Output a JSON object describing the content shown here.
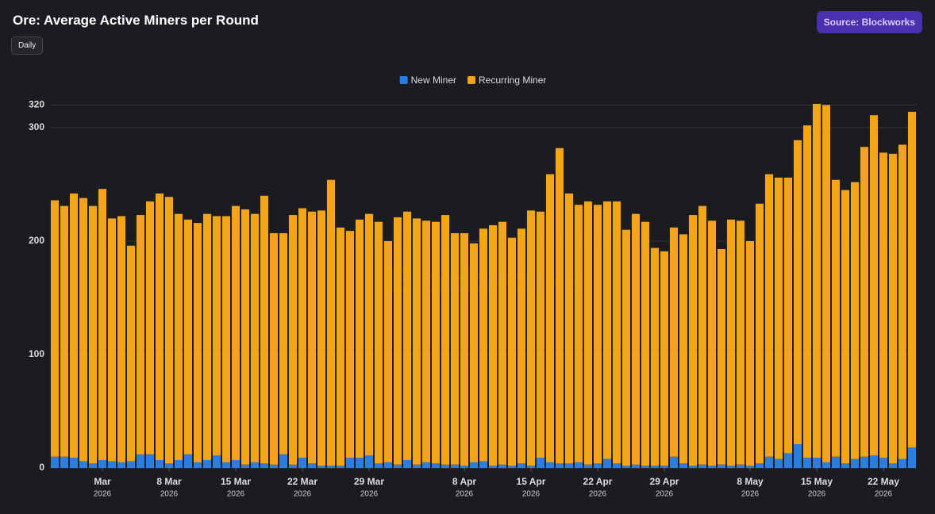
{
  "title": "Ore: Average Active Miners per Round",
  "period_button": "Daily",
  "source_button": "Source: Blockworks",
  "chart_data": {
    "type": "stacked_bar",
    "watermark": "Blockworks",
    "categories": [
      "2026-02-24",
      "2026-02-25",
      "2026-02-26",
      "2026-02-27",
      "2026-02-28",
      "2026-03-01",
      "2026-03-02",
      "2026-03-03",
      "2026-03-04",
      "2026-03-05",
      "2026-03-06",
      "2026-03-07",
      "2026-03-08",
      "2026-03-09",
      "2026-03-10",
      "2026-03-11",
      "2026-03-12",
      "2026-03-13",
      "2026-03-14",
      "2026-03-15",
      "2026-03-16",
      "2026-03-17",
      "2026-03-18",
      "2026-03-19",
      "2026-03-20",
      "2026-03-21",
      "2026-03-22",
      "2026-03-23",
      "2026-03-24",
      "2026-03-25",
      "2026-03-26",
      "2026-03-27",
      "2026-03-28",
      "2026-03-29",
      "2026-03-30",
      "2026-03-31",
      "2026-04-01",
      "2026-04-02",
      "2026-04-03",
      "2026-04-04",
      "2026-04-05",
      "2026-04-06",
      "2026-04-07",
      "2026-04-08",
      "2026-04-09",
      "2026-04-10",
      "2026-04-11",
      "2026-04-12",
      "2026-04-13",
      "2026-04-14",
      "2026-04-15",
      "2026-04-16",
      "2026-04-17",
      "2026-04-18",
      "2026-04-19",
      "2026-04-20",
      "2026-04-21",
      "2026-04-22",
      "2026-04-23",
      "2026-04-24",
      "2026-04-25",
      "2026-04-26",
      "2026-04-27",
      "2026-04-28",
      "2026-04-29",
      "2026-04-30",
      "2026-05-01",
      "2026-05-02",
      "2026-05-03",
      "2026-05-04",
      "2026-05-05",
      "2026-05-06",
      "2026-05-07",
      "2026-05-08",
      "2026-05-09",
      "2026-05-10",
      "2026-05-11",
      "2026-05-12",
      "2026-05-13",
      "2026-05-14",
      "2026-05-15",
      "2026-05-16",
      "2026-05-17",
      "2026-05-18",
      "2026-05-19",
      "2026-05-20",
      "2026-05-21",
      "2026-05-22",
      "2026-05-23",
      "2026-05-24",
      "2026-05-25"
    ],
    "series": [
      {
        "name": "New Miner",
        "color": "#2b7de0",
        "values": [
          10,
          10,
          9,
          6,
          4,
          7,
          6,
          5,
          6,
          12,
          12,
          7,
          4,
          7,
          12,
          5,
          7,
          11,
          5,
          7,
          3,
          5,
          4,
          3,
          12,
          3,
          9,
          4,
          2,
          2,
          2,
          9,
          9,
          11,
          4,
          5,
          3,
          7,
          3,
          5,
          4,
          3,
          3,
          2,
          5,
          6,
          2,
          3,
          2,
          4,
          2,
          9,
          5,
          4,
          4,
          5,
          3,
          4,
          8,
          4,
          2,
          3,
          2,
          2,
          2,
          10,
          4,
          2,
          3,
          2,
          3,
          2,
          3,
          2,
          4,
          10,
          8,
          13,
          21,
          9,
          9,
          5,
          10,
          4,
          8,
          10,
          11,
          9,
          4,
          8,
          18
        ]
      },
      {
        "name": "Recurring Miner",
        "color": "#f4a418",
        "values": [
          226,
          221,
          233,
          232,
          227,
          239,
          214,
          217,
          190,
          211,
          223,
          235,
          235,
          217,
          207,
          211,
          217,
          211,
          217,
          224,
          225,
          219,
          236,
          204,
          195,
          220,
          220,
          222,
          225,
          252,
          210,
          200,
          210,
          213,
          213,
          195,
          218,
          219,
          217,
          213,
          213,
          220,
          204,
          205,
          193,
          205,
          212,
          214,
          201,
          207,
          225,
          217,
          254,
          278,
          238,
          227,
          232,
          228,
          227,
          231,
          208,
          221,
          215,
          192,
          189,
          202,
          202,
          221,
          228,
          216,
          190,
          217,
          215,
          198,
          229,
          249,
          248,
          243,
          268,
          293,
          312,
          315,
          244,
          241,
          244,
          273,
          300,
          269,
          273,
          277,
          296
        ]
      }
    ],
    "ylim": [
      0,
      322
    ],
    "yticks": [
      0,
      100,
      200,
      300,
      320
    ],
    "grid": true,
    "xticks": [
      {
        "value": "2026-03-01",
        "label": "Mar",
        "year": "2026"
      },
      {
        "value": "2026-03-08",
        "label": "8 Mar",
        "year": "2026"
      },
      {
        "value": "2026-03-15",
        "label": "15 Mar",
        "year": "2026"
      },
      {
        "value": "2026-03-22",
        "label": "22 Mar",
        "year": "2026"
      },
      {
        "value": "2026-03-29",
        "label": "29 Mar",
        "year": "2026"
      },
      {
        "value": "2026-04-08",
        "label": "8 Apr",
        "year": "2026"
      },
      {
        "value": "2026-04-15",
        "label": "15 Apr",
        "year": "2026"
      },
      {
        "value": "2026-04-22",
        "label": "22 Apr",
        "year": "2026"
      },
      {
        "value": "2026-04-29",
        "label": "29 Apr",
        "year": "2026"
      },
      {
        "value": "2026-05-08",
        "label": "8 May",
        "year": "2026"
      },
      {
        "value": "2026-05-15",
        "label": "15 May",
        "year": "2026"
      },
      {
        "value": "2026-05-22",
        "label": "22 May",
        "year": "2026"
      }
    ],
    "legend": "top"
  }
}
